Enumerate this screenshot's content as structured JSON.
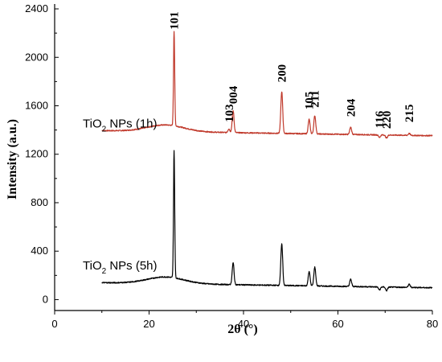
{
  "chart_data": {
    "type": "line",
    "xlabel": "2θ (°)",
    "ylabel": "Intensity (a.u.)",
    "xlim": [
      0,
      80
    ],
    "ylim": [
      -90,
      2440
    ],
    "x_ticks": [
      0,
      20,
      40,
      60,
      80
    ],
    "y_ticks": [
      0,
      400,
      800,
      1200,
      1600,
      2000,
      2400
    ],
    "grid": false,
    "series": [
      {
        "name_parts": [
          "TiO",
          "2",
          " NPs (1h)"
        ],
        "color": "#c0392b",
        "baseline": 1395,
        "peaks": [
          {
            "x": 25.3,
            "y": 2175,
            "label": "101"
          },
          {
            "x": 36.9,
            "y": 1425,
            "label": "103"
          },
          {
            "x": 37.8,
            "y": 1575,
            "label": "004"
          },
          {
            "x": 48.1,
            "y": 1740,
            "label": "200"
          },
          {
            "x": 53.9,
            "y": 1515,
            "label": "105"
          },
          {
            "x": 55.1,
            "y": 1545,
            "label": "211"
          },
          {
            "x": 62.7,
            "y": 1455,
            "label": "204"
          },
          {
            "x": 68.8,
            "y": 1375,
            "label": "116"
          },
          {
            "x": 70.3,
            "y": 1370,
            "label": "220"
          },
          {
            "x": 75.1,
            "y": 1410,
            "label": "215"
          }
        ]
      },
      {
        "name_parts": [
          "TiO",
          "2",
          " NPs (5h)"
        ],
        "color": "#000000",
        "baseline": 140,
        "peaks": [
          {
            "x": 25.3,
            "y": 1190
          },
          {
            "x": 37.8,
            "y": 320
          },
          {
            "x": 48.1,
            "y": 480
          },
          {
            "x": 53.9,
            "y": 260
          },
          {
            "x": 55.1,
            "y": 295
          },
          {
            "x": 62.7,
            "y": 200
          },
          {
            "x": 68.8,
            "y": 115
          },
          {
            "x": 70.3,
            "y": 110
          },
          {
            "x": 75.1,
            "y": 165
          }
        ]
      }
    ]
  }
}
